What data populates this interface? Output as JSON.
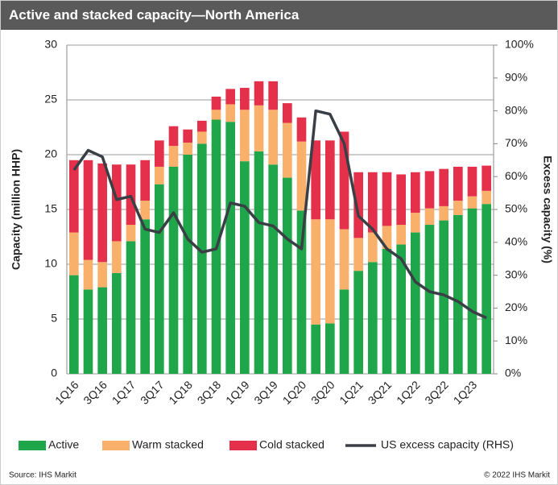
{
  "chart_data": {
    "type": "stacked-bar-line",
    "title": "Active and stacked capacity—North America",
    "y_label": "Capacity (million HHP)",
    "y2_label": "Excess capacity (%)",
    "source": "Source: IHS Markit",
    "copyright": "© 2022 IHS Markit",
    "categories": [
      "1Q16",
      null,
      "3Q16",
      null,
      "1Q17",
      null,
      "3Q17",
      null,
      "1Q18",
      null,
      "3Q18",
      null,
      "1Q19",
      null,
      "3Q19",
      null,
      "1Q20",
      null,
      "3Q20",
      null,
      "1Q21",
      null,
      "3Q21",
      null,
      "1Q22",
      null,
      "3Q22",
      null,
      "1Q23",
      null
    ],
    "series": [
      {
        "name": "Active",
        "color": "#1fa64a",
        "values": [
          9.0,
          7.7,
          7.9,
          9.2,
          12.1,
          14.1,
          17.3,
          18.9,
          20.0,
          21.0,
          23.2,
          23.0,
          19.4,
          20.3,
          19.1,
          17.9,
          14.9,
          4.5,
          4.6,
          7.7,
          9.4,
          10.2,
          11.4,
          11.8,
          12.9,
          13.6,
          14.0,
          14.5,
          15.1,
          15.5
        ]
      },
      {
        "name": "Warm stacked",
        "color": "#f8b06a",
        "values": [
          3.9,
          2.7,
          2.3,
          2.9,
          1.5,
          1.7,
          1.6,
          1.9,
          1.1,
          1.1,
          0.9,
          1.6,
          4.7,
          4.2,
          5.0,
          5.0,
          6.3,
          9.6,
          9.5,
          5.5,
          3.0,
          2.7,
          2.1,
          1.8,
          1.8,
          1.5,
          1.3,
          1.3,
          1.1,
          1.2
        ]
      },
      {
        "name": "Cold stacked",
        "color": "#e5304b",
        "values": [
          6.6,
          9.1,
          9.0,
          7.0,
          5.5,
          3.7,
          2.4,
          1.8,
          1.2,
          1.0,
          1.2,
          1.4,
          2.0,
          2.2,
          2.6,
          1.8,
          2.2,
          7.2,
          7.2,
          8.9,
          6.0,
          5.5,
          4.9,
          4.6,
          3.7,
          3.4,
          3.4,
          3.1,
          2.7,
          2.3
        ]
      },
      {
        "name": "US excess capacity (RHS)",
        "color": "#3a3f45",
        "axis": "y2",
        "values": [
          62,
          68,
          66,
          53,
          54,
          44,
          43,
          49,
          41,
          37,
          38,
          52,
          51,
          46,
          45,
          41,
          38,
          80,
          79,
          70,
          48,
          44,
          38,
          35,
          28,
          25,
          24,
          22,
          19,
          17
        ]
      }
    ],
    "ylim": [
      0,
      30
    ],
    "yticks": [
      0,
      5,
      10,
      15,
      20,
      25,
      30
    ],
    "y2lim": [
      0,
      100
    ],
    "y2ticks": [
      {
        "value": 0,
        "label": "0%"
      },
      {
        "value": 10,
        "label": "10%"
      },
      {
        "value": 20,
        "label": "20%"
      },
      {
        "value": 30,
        "label": "30%"
      },
      {
        "value": 40,
        "label": "40%"
      },
      {
        "value": 50,
        "label": "50%"
      },
      {
        "value": 60,
        "label": "60%"
      },
      {
        "value": 70,
        "label": "70%"
      },
      {
        "value": 80,
        "label": "80%"
      },
      {
        "value": 90,
        "label": "90%"
      },
      {
        "value": 100,
        "label": "100%"
      }
    ],
    "grid": true
  }
}
